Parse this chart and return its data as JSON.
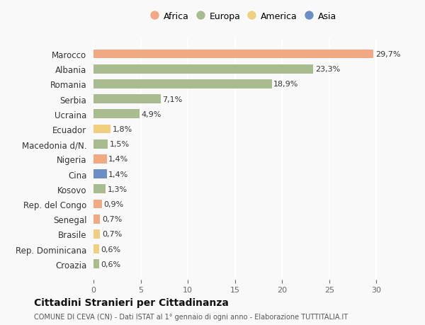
{
  "countries": [
    "Marocco",
    "Albania",
    "Romania",
    "Serbia",
    "Ucraina",
    "Ecuador",
    "Macedonia d/N.",
    "Nigeria",
    "Cina",
    "Kosovo",
    "Rep. del Congo",
    "Senegal",
    "Brasile",
    "Rep. Dominicana",
    "Croazia"
  ],
  "values": [
    29.7,
    23.3,
    18.9,
    7.1,
    4.9,
    1.8,
    1.5,
    1.4,
    1.4,
    1.3,
    0.9,
    0.7,
    0.7,
    0.6,
    0.6
  ],
  "labels": [
    "29,7%",
    "23,3%",
    "18,9%",
    "7,1%",
    "4,9%",
    "1,8%",
    "1,5%",
    "1,4%",
    "1,4%",
    "1,3%",
    "0,9%",
    "0,7%",
    "0,7%",
    "0,6%",
    "0,6%"
  ],
  "continents": [
    "Africa",
    "Europa",
    "Europa",
    "Europa",
    "Europa",
    "America",
    "Europa",
    "Africa",
    "Asia",
    "Europa",
    "Africa",
    "Africa",
    "America",
    "America",
    "Europa"
  ],
  "continent_colors": {
    "Africa": "#F0A982",
    "Europa": "#A8BC8F",
    "America": "#F0D080",
    "Asia": "#6B8EC4"
  },
  "legend_order": [
    "Africa",
    "Europa",
    "America",
    "Asia"
  ],
  "title": "Cittadini Stranieri per Cittadinanza",
  "subtitle": "COMUNE DI CEVA (CN) - Dati ISTAT al 1° gennaio di ogni anno - Elaborazione TUTTITALIA.IT",
  "xlim": [
    0,
    32
  ],
  "background_color": "#f9f9f9",
  "grid_color": "#ffffff"
}
